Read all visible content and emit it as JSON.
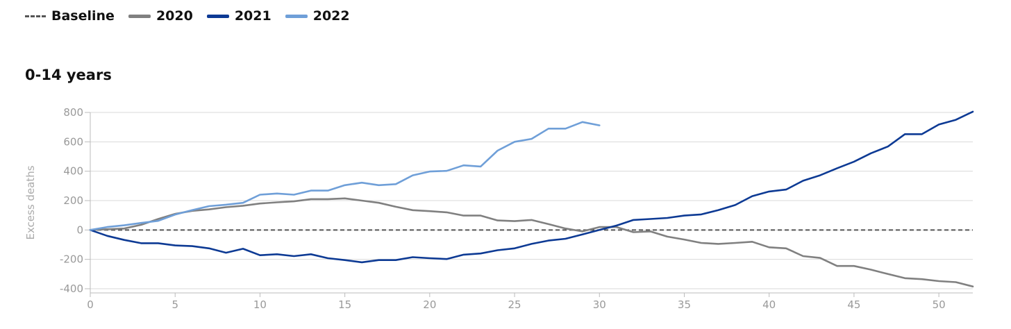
{
  "legend": [
    {
      "label": "Baseline",
      "style": "dashed",
      "color": "#555555"
    },
    {
      "label": "2020",
      "style": "solid",
      "color": "#808080"
    },
    {
      "label": "2021",
      "style": "solid",
      "color": "#0d3a94"
    },
    {
      "label": "2022",
      "style": "solid",
      "color": "#6f9fd8"
    }
  ],
  "chart_data": {
    "type": "line",
    "title": "0-14 years",
    "xlabel": "",
    "ylabel": "Excess deaths",
    "xlim": [
      0,
      52
    ],
    "ylim": [
      -400,
      800
    ],
    "xticks": [
      0,
      5,
      10,
      15,
      20,
      25,
      30,
      35,
      40,
      45,
      50
    ],
    "yticks": [
      -400,
      -200,
      0,
      200,
      400,
      600,
      800
    ],
    "grid": true,
    "legend_position": "top-left",
    "baseline": {
      "name": "Baseline",
      "value": 0,
      "color": "#555555",
      "style": "dashed"
    },
    "series": [
      {
        "name": "2020",
        "color": "#808080",
        "x": [
          0,
          1,
          2,
          3,
          4,
          5,
          6,
          7,
          8,
          9,
          10,
          11,
          12,
          13,
          14,
          15,
          16,
          17,
          18,
          19,
          20,
          21,
          22,
          23,
          24,
          25,
          26,
          27,
          28,
          29,
          30,
          31,
          32,
          33,
          34,
          35,
          36,
          37,
          38,
          39,
          40,
          41,
          42,
          43,
          44,
          45,
          46,
          47,
          48,
          49,
          50,
          51,
          52
        ],
        "values": [
          0,
          5,
          10,
          35,
          75,
          110,
          130,
          140,
          155,
          165,
          180,
          188,
          195,
          210,
          210,
          215,
          200,
          185,
          158,
          135,
          128,
          120,
          98,
          98,
          65,
          60,
          68,
          40,
          10,
          -10,
          20,
          20,
          -15,
          -10,
          -45,
          -65,
          -88,
          -95,
          -88,
          -80,
          -118,
          -125,
          -178,
          -190,
          -245,
          -245,
          -270,
          -300,
          -328,
          -335,
          -348,
          -355,
          -385
        ]
      },
      {
        "name": "2021",
        "color": "#0d3a94",
        "x": [
          0,
          1,
          2,
          3,
          4,
          5,
          6,
          7,
          8,
          9,
          10,
          11,
          12,
          13,
          14,
          15,
          16,
          17,
          18,
          19,
          20,
          21,
          22,
          23,
          24,
          25,
          26,
          27,
          28,
          29,
          30,
          31,
          32,
          33,
          34,
          35,
          36,
          37,
          38,
          39,
          40,
          41,
          42,
          43,
          44,
          45,
          46,
          47,
          48,
          49,
          50,
          51,
          52
        ],
        "values": [
          0,
          -40,
          -68,
          -90,
          -90,
          -105,
          -110,
          -125,
          -155,
          -128,
          -172,
          -165,
          -178,
          -165,
          -192,
          -205,
          -220,
          -205,
          -205,
          -185,
          -192,
          -198,
          -168,
          -160,
          -138,
          -125,
          -95,
          -72,
          -60,
          -30,
          0,
          30,
          68,
          75,
          82,
          98,
          106,
          135,
          170,
          230,
          262,
          275,
          335,
          372,
          420,
          465,
          522,
          568,
          652,
          652,
          718,
          750,
          805
        ]
      },
      {
        "name": "2022",
        "color": "#6f9fd8",
        "x": [
          0,
          1,
          2,
          3,
          4,
          5,
          6,
          7,
          8,
          9,
          10,
          11,
          12,
          13,
          14,
          15,
          16,
          17,
          18,
          19,
          20,
          21,
          22,
          23,
          24,
          25,
          26,
          27,
          28,
          29,
          30
        ],
        "values": [
          0,
          20,
          32,
          48,
          62,
          105,
          135,
          162,
          172,
          185,
          240,
          248,
          240,
          268,
          268,
          305,
          322,
          305,
          312,
          372,
          398,
          402,
          440,
          432,
          540,
          600,
          620,
          690,
          690,
          735,
          712
        ]
      }
    ]
  }
}
